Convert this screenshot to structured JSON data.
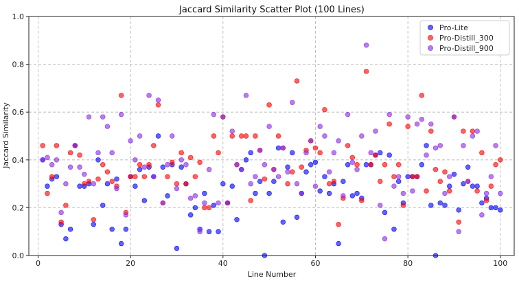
{
  "chart_data": {
    "type": "scatter",
    "title": "Jaccard Similarity Scatter Plot (100 Lines)",
    "xlabel": "Line Number",
    "ylabel": "Jaccard Similarity",
    "xlim": [
      -2,
      103
    ],
    "ylim": [
      0.0,
      1.0
    ],
    "xticks": [
      0,
      20,
      40,
      60,
      80,
      100
    ],
    "yticks": [
      0.0,
      0.2,
      0.4,
      0.6,
      0.8,
      1.0
    ],
    "xtick_labels": [
      "0",
      "20",
      "40",
      "60",
      "80",
      "100"
    ],
    "ytick_labels": [
      "0.0",
      "0.2",
      "0.4",
      "0.6",
      "0.8",
      "1.0"
    ],
    "grid": true,
    "legend_position": "top-right",
    "series": [
      {
        "name": "Pro-Lite",
        "color": "#0000ff",
        "x": [
          1,
          2,
          3,
          4,
          5,
          6,
          7,
          8,
          9,
          10,
          11,
          12,
          13,
          14,
          15,
          16,
          17,
          18,
          19,
          20,
          21,
          22,
          23,
          24,
          25,
          26,
          27,
          28,
          29,
          30,
          31,
          32,
          33,
          34,
          35,
          36,
          37,
          38,
          39,
          40,
          41,
          42,
          43,
          44,
          45,
          46,
          47,
          48,
          49,
          50,
          51,
          52,
          53,
          54,
          55,
          56,
          57,
          58,
          59,
          60,
          61,
          62,
          63,
          64,
          65,
          66,
          67,
          68,
          69,
          70,
          71,
          72,
          73,
          74,
          75,
          76,
          77,
          78,
          79,
          80,
          81,
          82,
          83,
          84,
          85,
          86,
          87,
          88,
          89,
          90,
          91,
          92,
          93,
          94,
          95,
          96,
          97,
          98,
          99,
          100
        ],
        "y": [
          0.4,
          0.29,
          0.32,
          0.33,
          0.13,
          0.07,
          0.11,
          0.46,
          0.29,
          0.29,
          0.3,
          0.13,
          0.4,
          0.21,
          0.3,
          0.11,
          0.32,
          0.05,
          0.11,
          0.33,
          0.29,
          0.36,
          0.23,
          0.37,
          0.33,
          0.5,
          0.37,
          0.25,
          0.38,
          0.03,
          0.37,
          0.3,
          0.17,
          0.2,
          0.11,
          0.26,
          0.1,
          0.21,
          0.1,
          0.3,
          0.22,
          0.29,
          0.15,
          0.36,
          0.4,
          0.43,
          0.26,
          0.31,
          0.0,
          0.26,
          0.31,
          0.45,
          0.14,
          0.37,
          0.43,
          0.16,
          0.26,
          0.35,
          0.38,
          0.39,
          0.27,
          0.33,
          0.26,
          0.3,
          0.05,
          0.31,
          0.38,
          0.25,
          0.26,
          0.24,
          0.38,
          0.38,
          0.42,
          0.43,
          0.18,
          0.42,
          0.11,
          0.31,
          0.22,
          0.33,
          0.33,
          0.33,
          0.38,
          0.46,
          0.21,
          0.0,
          0.22,
          0.21,
          0.29,
          0.34,
          0.19,
          0.3,
          0.37,
          0.29,
          0.29,
          0.22,
          0.24,
          0.2,
          0.2,
          0.19
        ]
      },
      {
        "name": "Pro-Distill_300",
        "color": "#ff0000",
        "x": [
          1,
          2,
          3,
          4,
          5,
          6,
          7,
          8,
          9,
          10,
          11,
          12,
          13,
          14,
          15,
          16,
          17,
          18,
          19,
          20,
          21,
          22,
          23,
          24,
          25,
          26,
          27,
          28,
          29,
          30,
          31,
          32,
          33,
          34,
          35,
          36,
          37,
          38,
          39,
          40,
          41,
          42,
          43,
          44,
          45,
          46,
          47,
          48,
          49,
          50,
          51,
          52,
          53,
          54,
          55,
          56,
          57,
          58,
          59,
          60,
          61,
          62,
          63,
          64,
          65,
          66,
          67,
          68,
          69,
          70,
          71,
          72,
          73,
          74,
          75,
          76,
          77,
          78,
          79,
          80,
          81,
          82,
          83,
          84,
          85,
          86,
          87,
          88,
          89,
          90,
          91,
          92,
          93,
          94,
          95,
          96,
          97,
          98,
          99,
          100
        ],
        "y": [
          0.46,
          0.26,
          0.33,
          0.46,
          0.14,
          0.21,
          0.43,
          0.46,
          0.42,
          0.3,
          0.31,
          0.15,
          0.32,
          0.38,
          0.35,
          0.31,
          0.29,
          0.67,
          0.18,
          0.33,
          0.33,
          0.38,
          0.33,
          0.38,
          0.46,
          0.63,
          0.22,
          0.33,
          0.39,
          0.3,
          0.43,
          0.3,
          0.41,
          0.33,
          0.39,
          0.2,
          0.2,
          0.5,
          0.43,
          0.58,
          0.22,
          0.5,
          0.38,
          0.5,
          0.5,
          0.23,
          0.5,
          0.44,
          0.32,
          0.63,
          0.36,
          0.5,
          0.45,
          0.3,
          0.35,
          0.73,
          0.37,
          0.44,
          0.48,
          0.45,
          0.43,
          0.61,
          0.3,
          0.31,
          0.13,
          0.24,
          0.46,
          0.41,
          0.38,
          0.23,
          0.77,
          0.38,
          0.42,
          0.31,
          0.38,
          0.55,
          0.33,
          0.38,
          0.21,
          0.54,
          0.33,
          0.33,
          0.67,
          0.27,
          0.52,
          0.36,
          0.31,
          0.35,
          0.27,
          0.58,
          0.14,
          0.52,
          0.31,
          0.52,
          0.27,
          0.43,
          0.23,
          0.29,
          0.38,
          0.4
        ]
      },
      {
        "name": "Pro-Distill_900",
        "color": "#8a2be2",
        "x": [
          1,
          2,
          3,
          4,
          5,
          6,
          7,
          8,
          9,
          10,
          11,
          12,
          13,
          14,
          15,
          16,
          17,
          18,
          19,
          20,
          21,
          22,
          23,
          24,
          25,
          26,
          27,
          28,
          29,
          30,
          31,
          32,
          33,
          34,
          35,
          36,
          37,
          38,
          39,
          40,
          41,
          42,
          43,
          44,
          45,
          46,
          47,
          48,
          49,
          50,
          51,
          52,
          53,
          54,
          55,
          56,
          57,
          58,
          59,
          60,
          61,
          62,
          63,
          64,
          65,
          66,
          67,
          68,
          69,
          70,
          71,
          72,
          73,
          74,
          75,
          76,
          77,
          78,
          79,
          80,
          81,
          82,
          83,
          84,
          85,
          86,
          87,
          88,
          89,
          90,
          91,
          92,
          93,
          94,
          95,
          96,
          97,
          98,
          99,
          100
        ],
        "y": [
          0.4,
          0.41,
          0.38,
          0.4,
          0.18,
          0.3,
          0.37,
          0.46,
          0.37,
          0.34,
          0.58,
          0.3,
          0.43,
          0.58,
          0.54,
          0.43,
          0.28,
          0.59,
          0.17,
          0.48,
          0.4,
          0.5,
          0.37,
          0.67,
          0.33,
          0.65,
          0.22,
          0.38,
          0.5,
          0.28,
          0.4,
          0.38,
          0.24,
          0.25,
          0.1,
          0.22,
          0.36,
          0.59,
          0.22,
          0.58,
          0.22,
          0.52,
          0.38,
          0.36,
          0.67,
          0.3,
          0.33,
          0.44,
          0.38,
          0.54,
          0.36,
          0.33,
          0.45,
          0.35,
          0.64,
          0.3,
          0.26,
          0.43,
          0.48,
          0.29,
          0.54,
          0.5,
          0.35,
          0.43,
          0.48,
          0.25,
          0.59,
          0.39,
          0.36,
          0.5,
          0.88,
          0.43,
          0.52,
          0.21,
          0.07,
          0.59,
          0.29,
          0.33,
          0.26,
          0.58,
          0.27,
          0.55,
          0.57,
          0.42,
          0.55,
          0.45,
          0.46,
          0.26,
          0.33,
          0.58,
          0.1,
          0.46,
          0.31,
          0.5,
          0.52,
          0.17,
          0.26,
          0.33,
          0.46,
          0.26
        ]
      }
    ]
  }
}
